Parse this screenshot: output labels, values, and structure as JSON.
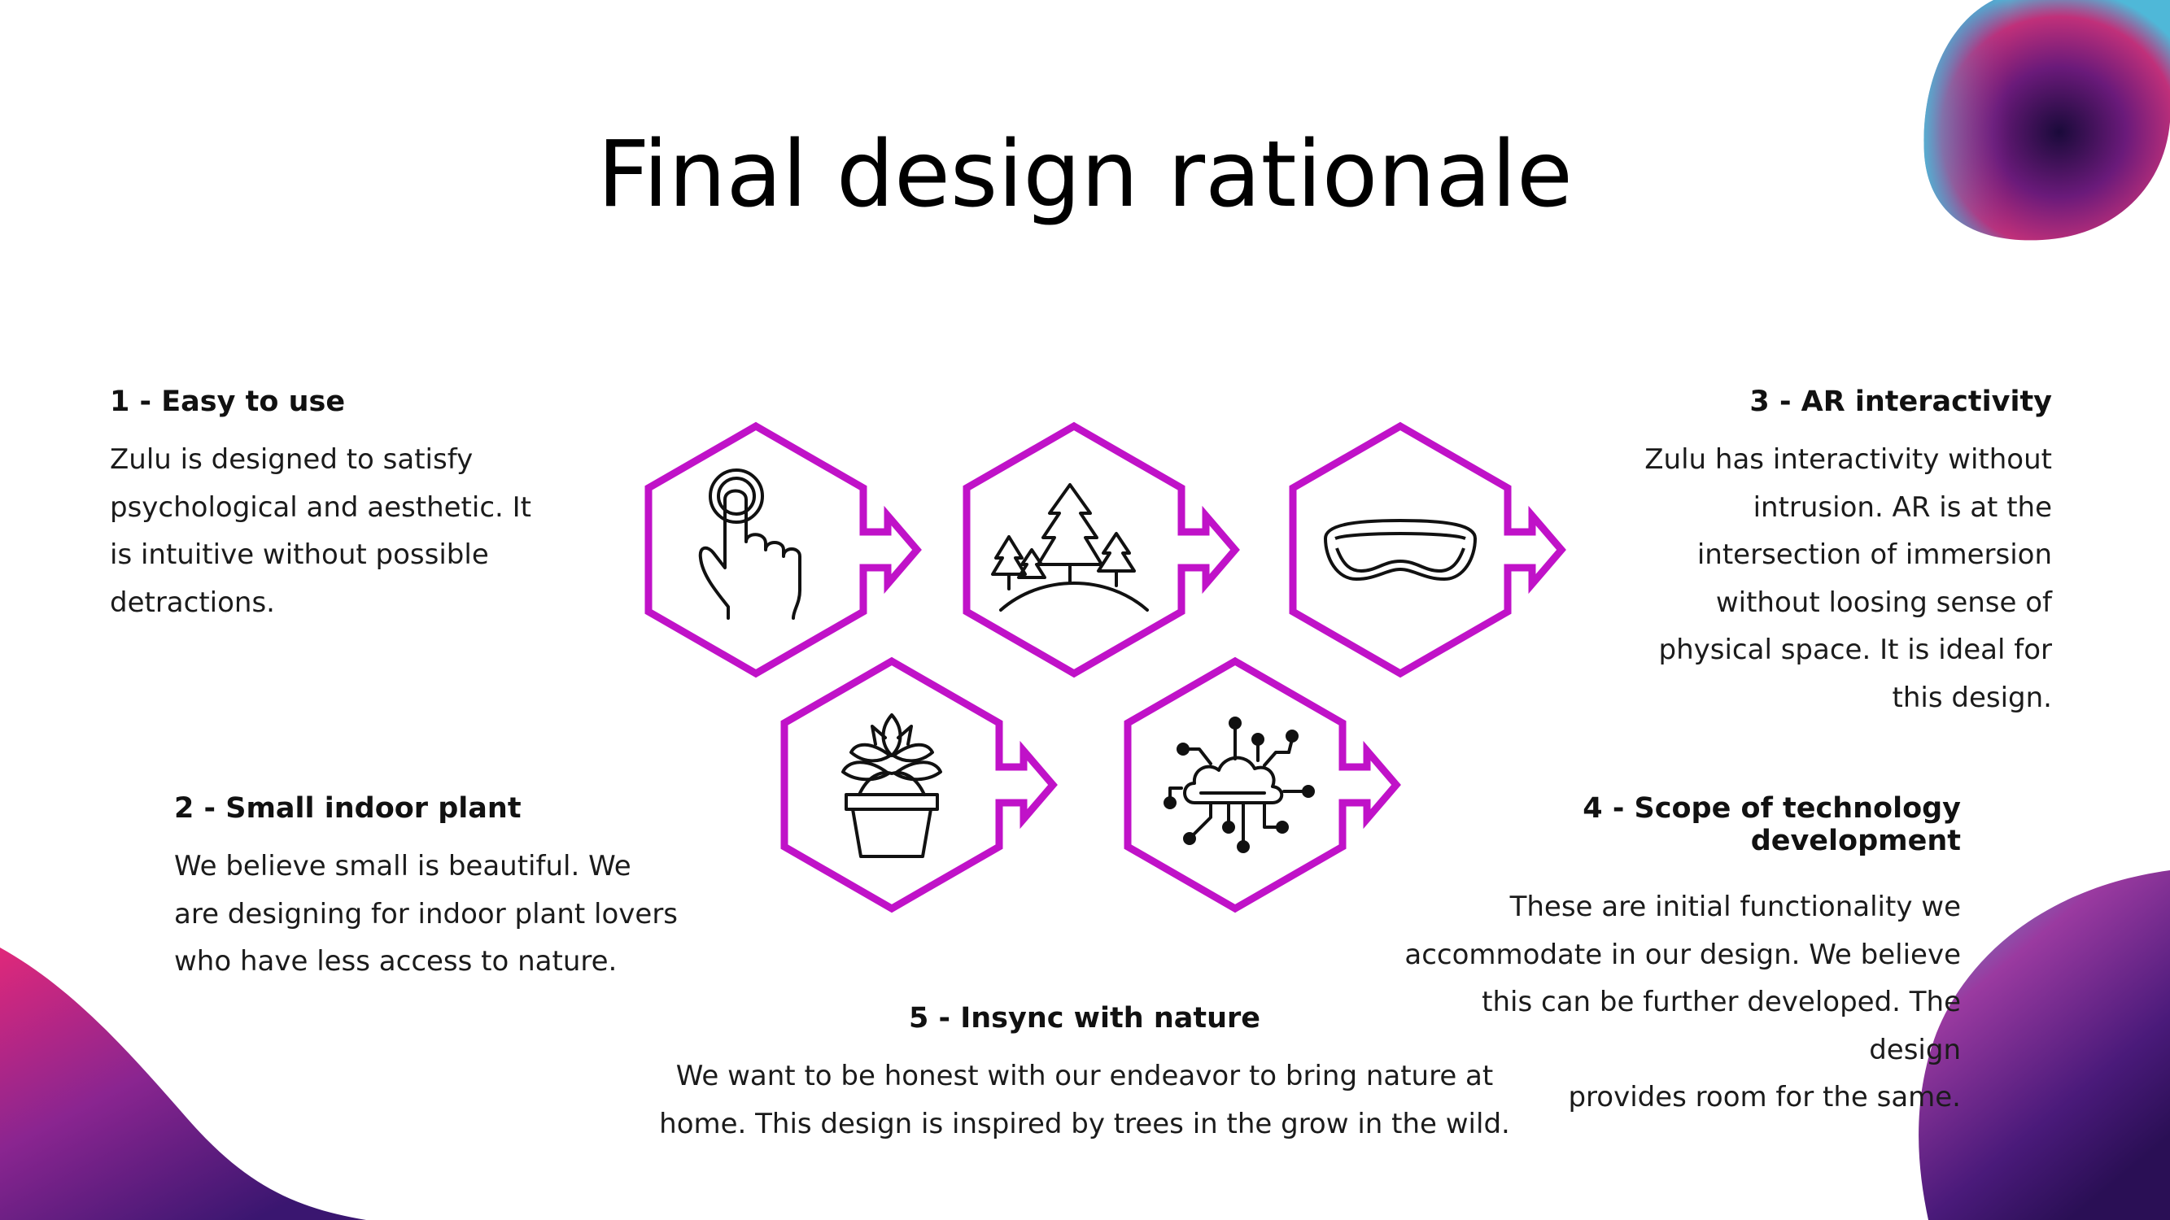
{
  "slide": {
    "title": "Final design rationale"
  },
  "points": [
    {
      "heading": "1 - Easy to use",
      "body_lines": [
        "Zulu is designed to satisfy",
        "psychological and aesthetic. It",
        "is intuitive without possible",
        "detractions."
      ]
    },
    {
      "heading": "2 - Small indoor plant",
      "body_lines": [
        "We believe small is beautiful. We",
        "are designing for indoor plant lovers",
        "who have less access to nature."
      ]
    },
    {
      "heading": "3 - AR interactivity",
      "body_lines": [
        "Zulu has interactivity without",
        "intrusion. AR is at the",
        "intersection of immersion",
        "without loosing sense of",
        "physical space. It is ideal for",
        "this design."
      ]
    },
    {
      "heading": "4 - Scope of technology development",
      "body_lines": [
        "These are initial functionality  we",
        "accommodate in  our design. We believe",
        "this can be further developed. The design",
        "provides room for the same."
      ]
    },
    {
      "heading": "5 - Insync with nature",
      "body_lines": [
        "We want to be honest with our endeavor to bring nature at",
        "home. This design is inspired by trees in the grow in the wild."
      ]
    }
  ],
  "hexagons": [
    {
      "icon": "touch-hand-icon"
    },
    {
      "icon": "forest-trees-icon"
    },
    {
      "icon": "ar-goggles-icon"
    },
    {
      "icon": "potted-succulent-icon"
    },
    {
      "icon": "cloud-network-icon"
    }
  ],
  "colors": {
    "hex_stroke": "#c012c8",
    "blob_pink": "#e0287a",
    "blob_purple": "#5a1a8a",
    "blob_cyan": "#4fb8d8",
    "text": "#111111"
  }
}
